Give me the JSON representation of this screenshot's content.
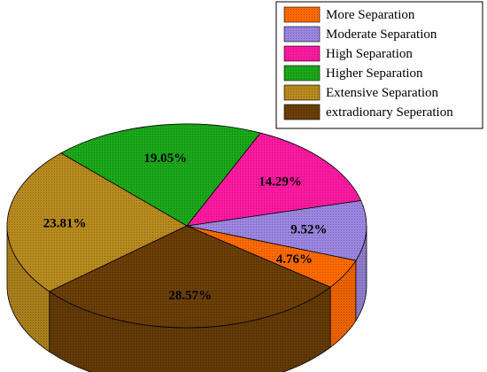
{
  "chart_data": {
    "type": "pie",
    "title": "",
    "legend_position": "top-right",
    "slices": [
      {
        "label": "More Separation",
        "value": 4.76,
        "value_label": "4.76%",
        "color": "#ff6a00"
      },
      {
        "label": "Moderate Separation",
        "value": 9.52,
        "value_label": "9.52%",
        "color": "#9b86e0"
      },
      {
        "label": "High Separation",
        "value": 14.29,
        "value_label": "14.29%",
        "color": "#ff1aa0"
      },
      {
        "label": "Higher Separation",
        "value": 19.05,
        "value_label": "19.05%",
        "color": "#1aa81a"
      },
      {
        "label": "Extensive Separation",
        "value": 23.81,
        "value_label": "23.81%",
        "color": "#b88a1e"
      },
      {
        "label": "extradionary Seperation",
        "value": 28.57,
        "value_label": "28.57%",
        "color": "#6a3e08"
      }
    ]
  }
}
